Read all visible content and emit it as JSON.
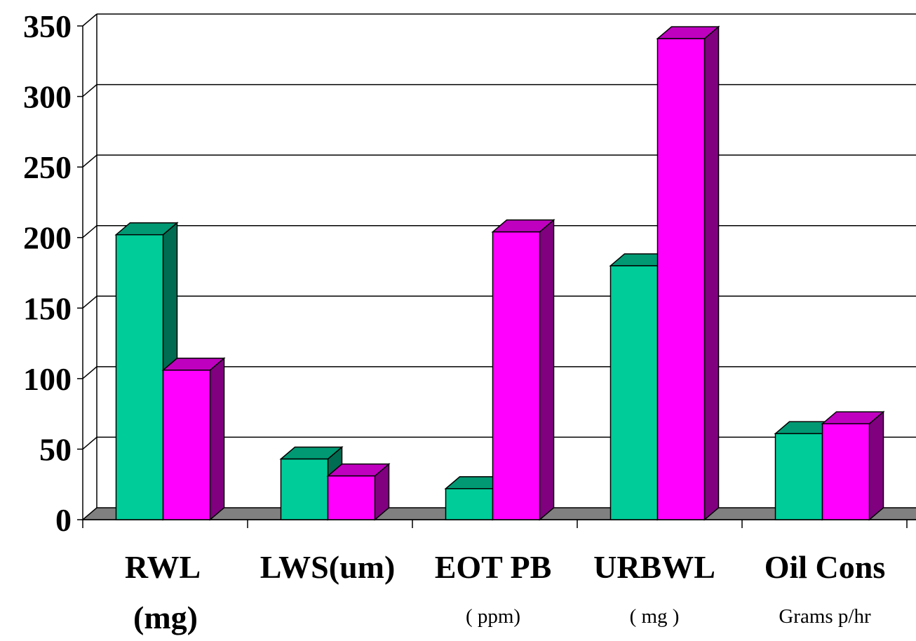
{
  "chart_data": {
    "type": "bar",
    "categories": [
      "RWL",
      "LWS(um)",
      "EOT PB",
      "URBWL",
      "Oil Cons"
    ],
    "category_units": [
      "(mg)",
      "",
      "( ppm)",
      "( mg )",
      "Grams p/hr"
    ],
    "series": [
      {
        "values": [
          202,
          43,
          22,
          180,
          61
        ],
        "color": "#00cc99",
        "side_color": "#006c52",
        "top_color": "#009973"
      },
      {
        "values": [
          106,
          31,
          204,
          341,
          68
        ],
        "color": "#ff00ff",
        "side_color": "#800080",
        "top_color": "#bf00bf"
      }
    ],
    "y_ticks": [
      "0",
      "50",
      "100",
      "150",
      "200",
      "250",
      "300",
      "350"
    ],
    "ylim": [
      0,
      350
    ],
    "grid": true,
    "style": "3d-column",
    "floor_color": "#808080",
    "title": "",
    "xlabel": "",
    "ylabel": ""
  }
}
